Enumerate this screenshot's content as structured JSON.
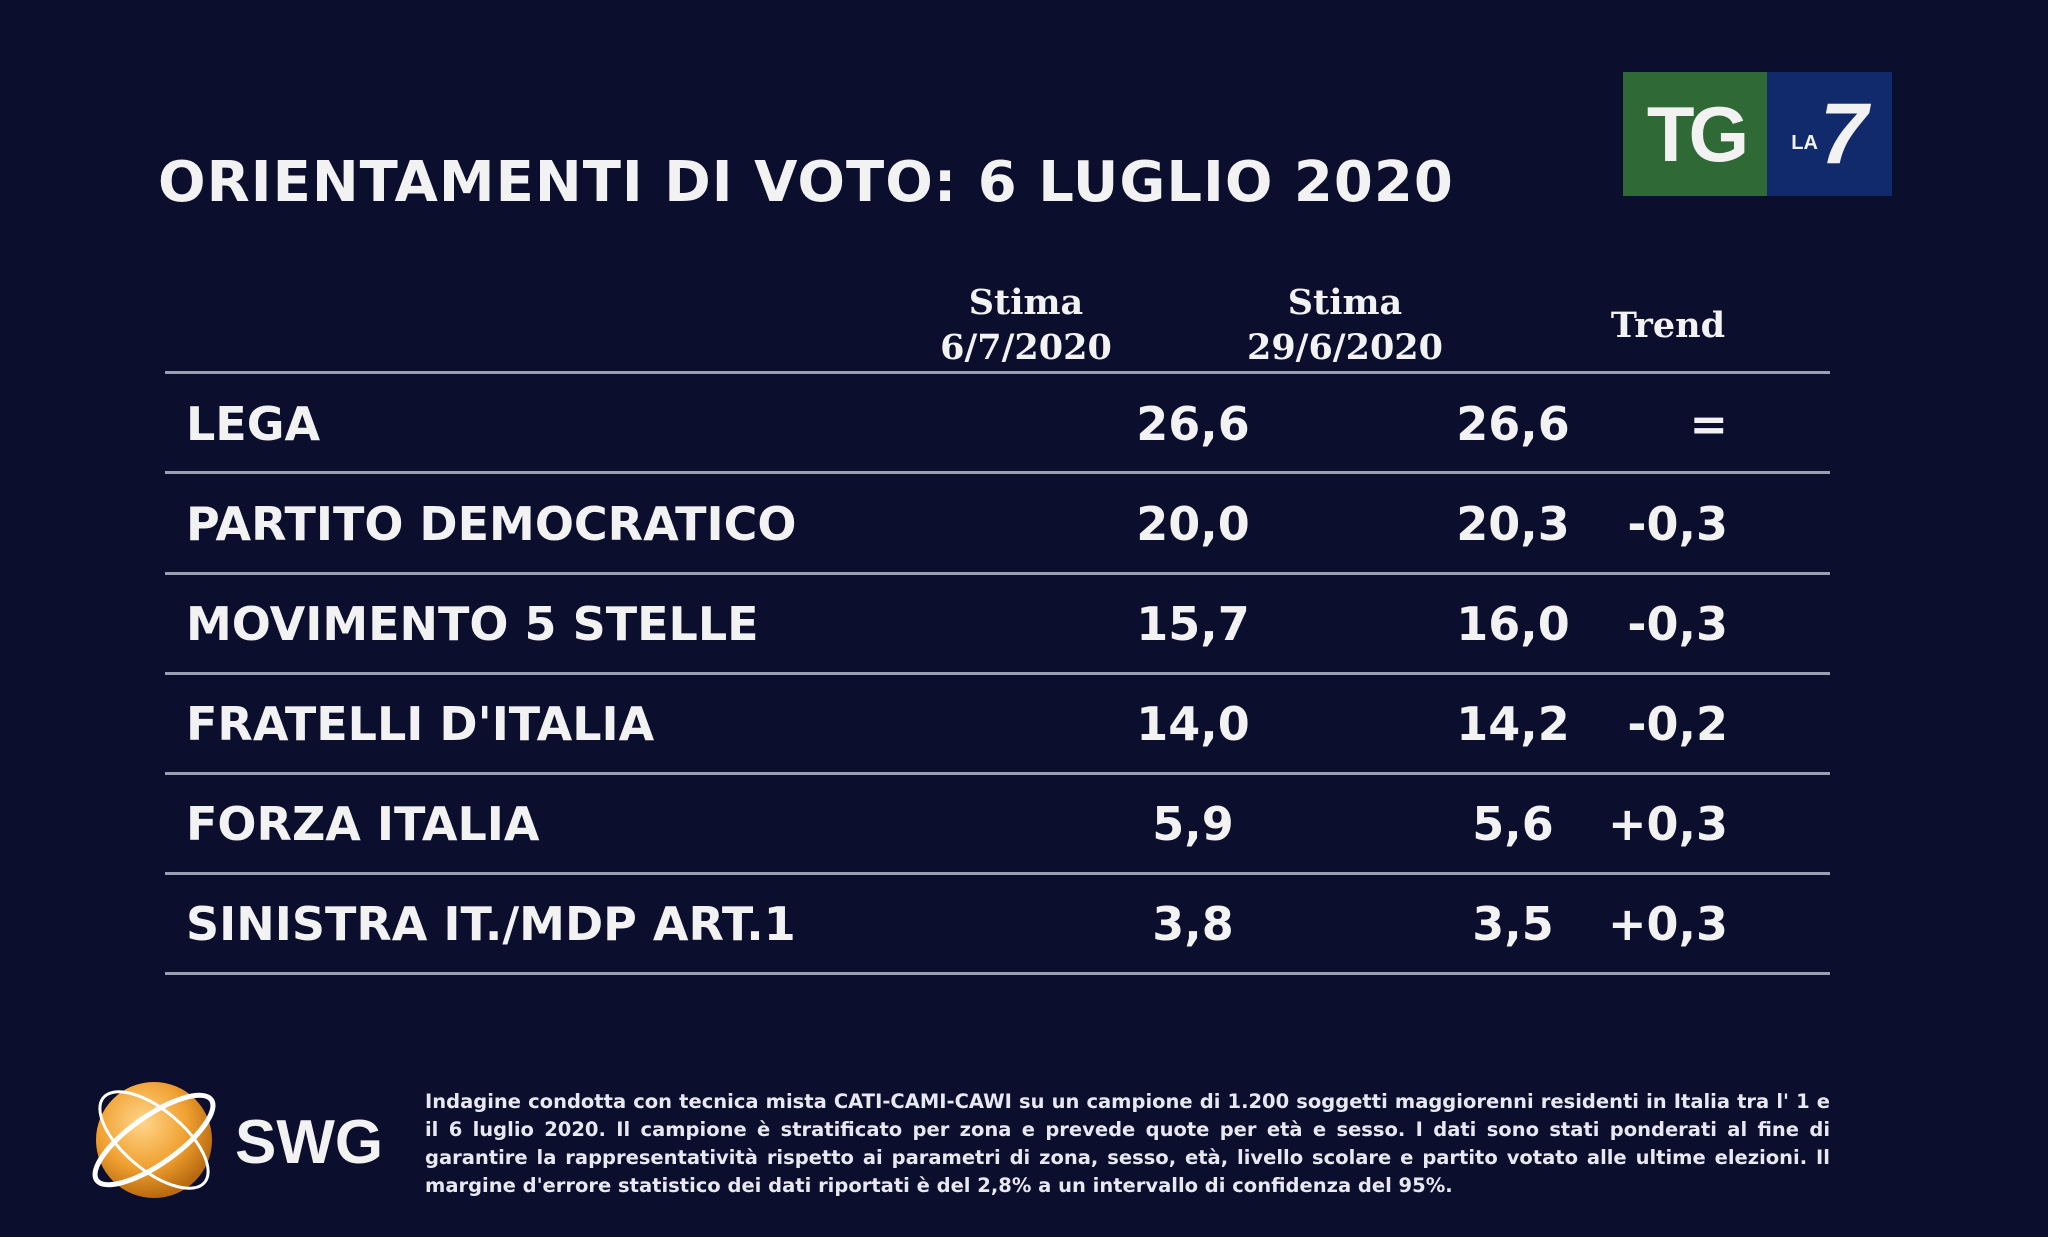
{
  "title": "ORIENTAMENTI DI VOTO: 6 LUGLIO 2020",
  "broadcaster_logo": {
    "main": "TG",
    "small": "LA",
    "number": "7",
    "colors": {
      "green": "#2f6a36",
      "blue": "#112a6c"
    }
  },
  "table": {
    "headers": [
      {
        "line1": "Stima",
        "line2": "6/7/2020"
      },
      {
        "line1": "Stima",
        "line2": "29/6/2020"
      },
      {
        "line1": "Trend",
        "line2": ""
      }
    ],
    "rows": [
      {
        "party": "LEGA",
        "current": "26,6",
        "previous": "26,6",
        "trend": "="
      },
      {
        "party": "PARTITO  DEMOCRATICO",
        "current": "20,0",
        "previous": "20,3",
        "trend": "-0,3"
      },
      {
        "party": "MOVIMENTO 5 STELLE",
        "current": "15,7",
        "previous": "16,0",
        "trend": "-0,3"
      },
      {
        "party": "FRATELLI D'ITALIA",
        "current": "14,0",
        "previous": "14,2",
        "trend": "-0,2"
      },
      {
        "party": "FORZA ITALIA",
        "current": "5,9",
        "previous": "5,6",
        "trend": "+0,3"
      },
      {
        "party": "SINISTRA IT./MDP ART.1",
        "current": "3,8",
        "previous": "3,5",
        "trend": "+0,3"
      }
    ]
  },
  "source_logo": {
    "text": "SWG"
  },
  "footnote": "Indagine condotta con tecnica mista CATI-CAMI-CAWI su un campione di 1.200 soggetti maggiorenni residenti in Italia tra l' 1 e il 6 luglio 2020. Il campione è stratificato per zona e prevede quote per età e sesso. I dati sono stati ponderati al fine di garantire la rappresentatività rispetto ai parametri di zona, sesso, età, livello scolare e partito votato alle ultime elezioni. Il margine d'errore statistico dei dati riportati è del 2,8% a un intervallo di confidenza del 95%."
}
